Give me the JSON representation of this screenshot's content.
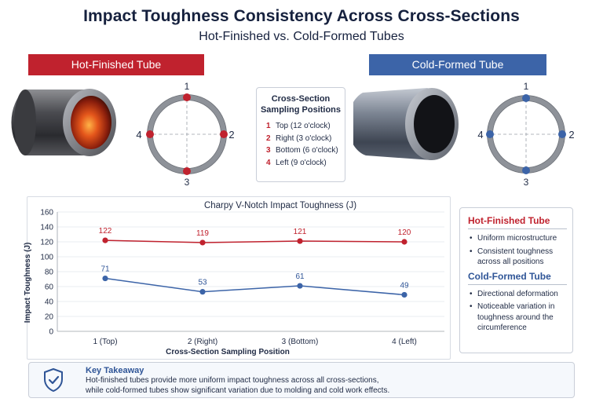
{
  "header": {
    "title": "Impact Toughness Consistency Across Cross-Sections",
    "subtitle": "Hot-Finished vs. Cold-Formed Tubes"
  },
  "tubes": {
    "hot_label": "Hot-Finished Tube",
    "cold_label": "Cold-Formed Tube",
    "hot_color": "#c0222e",
    "cold_color": "#3c64a8"
  },
  "positions": {
    "labels": [
      "1",
      "2",
      "3",
      "4"
    ]
  },
  "legend": {
    "title": "Cross-Section Sampling Positions",
    "items": [
      {
        "num": "1",
        "text": "Top (12 o'clock)"
      },
      {
        "num": "2",
        "text": "Right (3 o'clock)"
      },
      {
        "num": "3",
        "text": "Bottom (6 o'clock)"
      },
      {
        "num": "4",
        "text": "Left (9 o'clock)"
      }
    ]
  },
  "chart_data": {
    "type": "line",
    "title": "Charpy V-Notch Impact Toughness (J)",
    "xlabel": "Cross-Section Sampling Position",
    "ylabel": "Impact Toughness (J)",
    "categories": [
      "1 (Top)",
      "2 (Right)",
      "3 (Bottom)",
      "4 (Left)"
    ],
    "ylim": [
      0,
      160
    ],
    "yticks": [
      0,
      20,
      40,
      60,
      80,
      100,
      120,
      140,
      160
    ],
    "grid": true,
    "series": [
      {
        "values": [
          122,
          119,
          121,
          120
        ],
        "color": "#c0222e"
      },
      {
        "values": [
          71,
          53,
          61,
          49
        ],
        "color": "#3c64a8"
      }
    ]
  },
  "side_panel": {
    "hot_heading": "Hot-Finished Tube",
    "hot_points": [
      "Uniform microstructure",
      "Consistent toughness across all positions"
    ],
    "cold_heading": "Cold-Formed Tube",
    "cold_points": [
      "Directional deformation",
      "Noticeable variation in toughness around the circumference"
    ]
  },
  "takeaway": {
    "icon": "shield-check-icon",
    "title": "Key Takeaway",
    "line1": "Hot-finished tubes provide more uniform impact toughness across all cross-sections,",
    "line2": "while cold-formed tubes show significant variation due to molding and cold work effects."
  }
}
